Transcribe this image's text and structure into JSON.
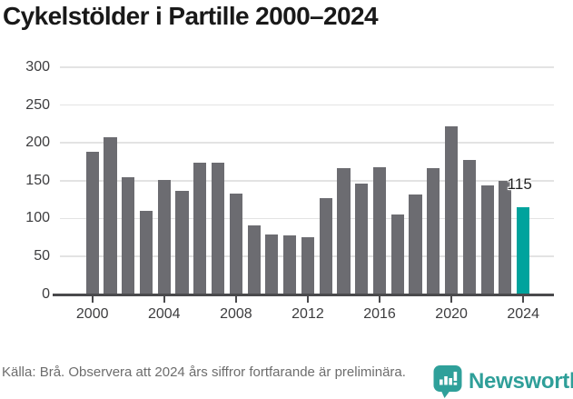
{
  "title": "Cykelstölder i Partille 2000–2024",
  "chart_data": {
    "type": "bar",
    "title": "Cykelstölder i Partille 2000–2024",
    "categories": [
      2000,
      2001,
      2002,
      2003,
      2004,
      2005,
      2006,
      2007,
      2008,
      2009,
      2010,
      2011,
      2012,
      2013,
      2014,
      2015,
      2016,
      2017,
      2018,
      2019,
      2020,
      2021,
      2022,
      2023,
      2024
    ],
    "values": [
      188,
      208,
      154,
      110,
      151,
      137,
      174,
      174,
      133,
      91,
      79,
      77,
      75,
      127,
      167,
      146,
      168,
      105,
      132,
      166,
      222,
      177,
      144,
      150,
      115
    ],
    "xlabel": "",
    "ylabel": "",
    "ylim": [
      0,
      300
    ],
    "yticks": [
      0,
      50,
      100,
      150,
      200,
      250,
      300
    ],
    "xticks": [
      2000,
      2004,
      2008,
      2012,
      2016,
      2020,
      2024
    ],
    "grid": true,
    "legend_position": "none",
    "bar_color": "#6c6c71",
    "highlight_year": 2024,
    "highlight_color": "#00a39d",
    "annotation": {
      "year": 2024,
      "text": "115"
    }
  },
  "footer": {
    "source_text": "Källa: Brå. Observera att 2024 års siffror fortfarande är preliminära."
  },
  "logo": {
    "brand": "Newsworthy",
    "color": "#2f9f99",
    "icon": "newsworthy-chart-bubble-icon"
  }
}
